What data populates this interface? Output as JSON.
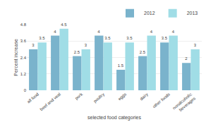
{
  "chart_data": {
    "type": "bar",
    "categories": [
      "all food",
      "beef and veal",
      "pork",
      "poultry",
      "eggs",
      "dairy",
      "other foods",
      "nonalcoholic\nbeverages"
    ],
    "series": [
      {
        "name": "2012",
        "color": "#7ab3cc",
        "values": [
          3,
          4,
          2.5,
          4,
          1.5,
          2.5,
          3.5,
          2
        ]
      },
      {
        "name": "2013",
        "color": "#a0dde6",
        "values": [
          3.5,
          4.5,
          3,
          3.5,
          3.5,
          4,
          4,
          3
        ]
      }
    ],
    "xlabel": "selected food categories",
    "ylabel": "Percent increase",
    "ylim": [
      0,
      4.8
    ],
    "yticks": [
      0,
      1.2,
      2.4,
      3.6,
      4.8
    ],
    "grid": true,
    "legend": "upper right",
    "data_labels": true
  }
}
